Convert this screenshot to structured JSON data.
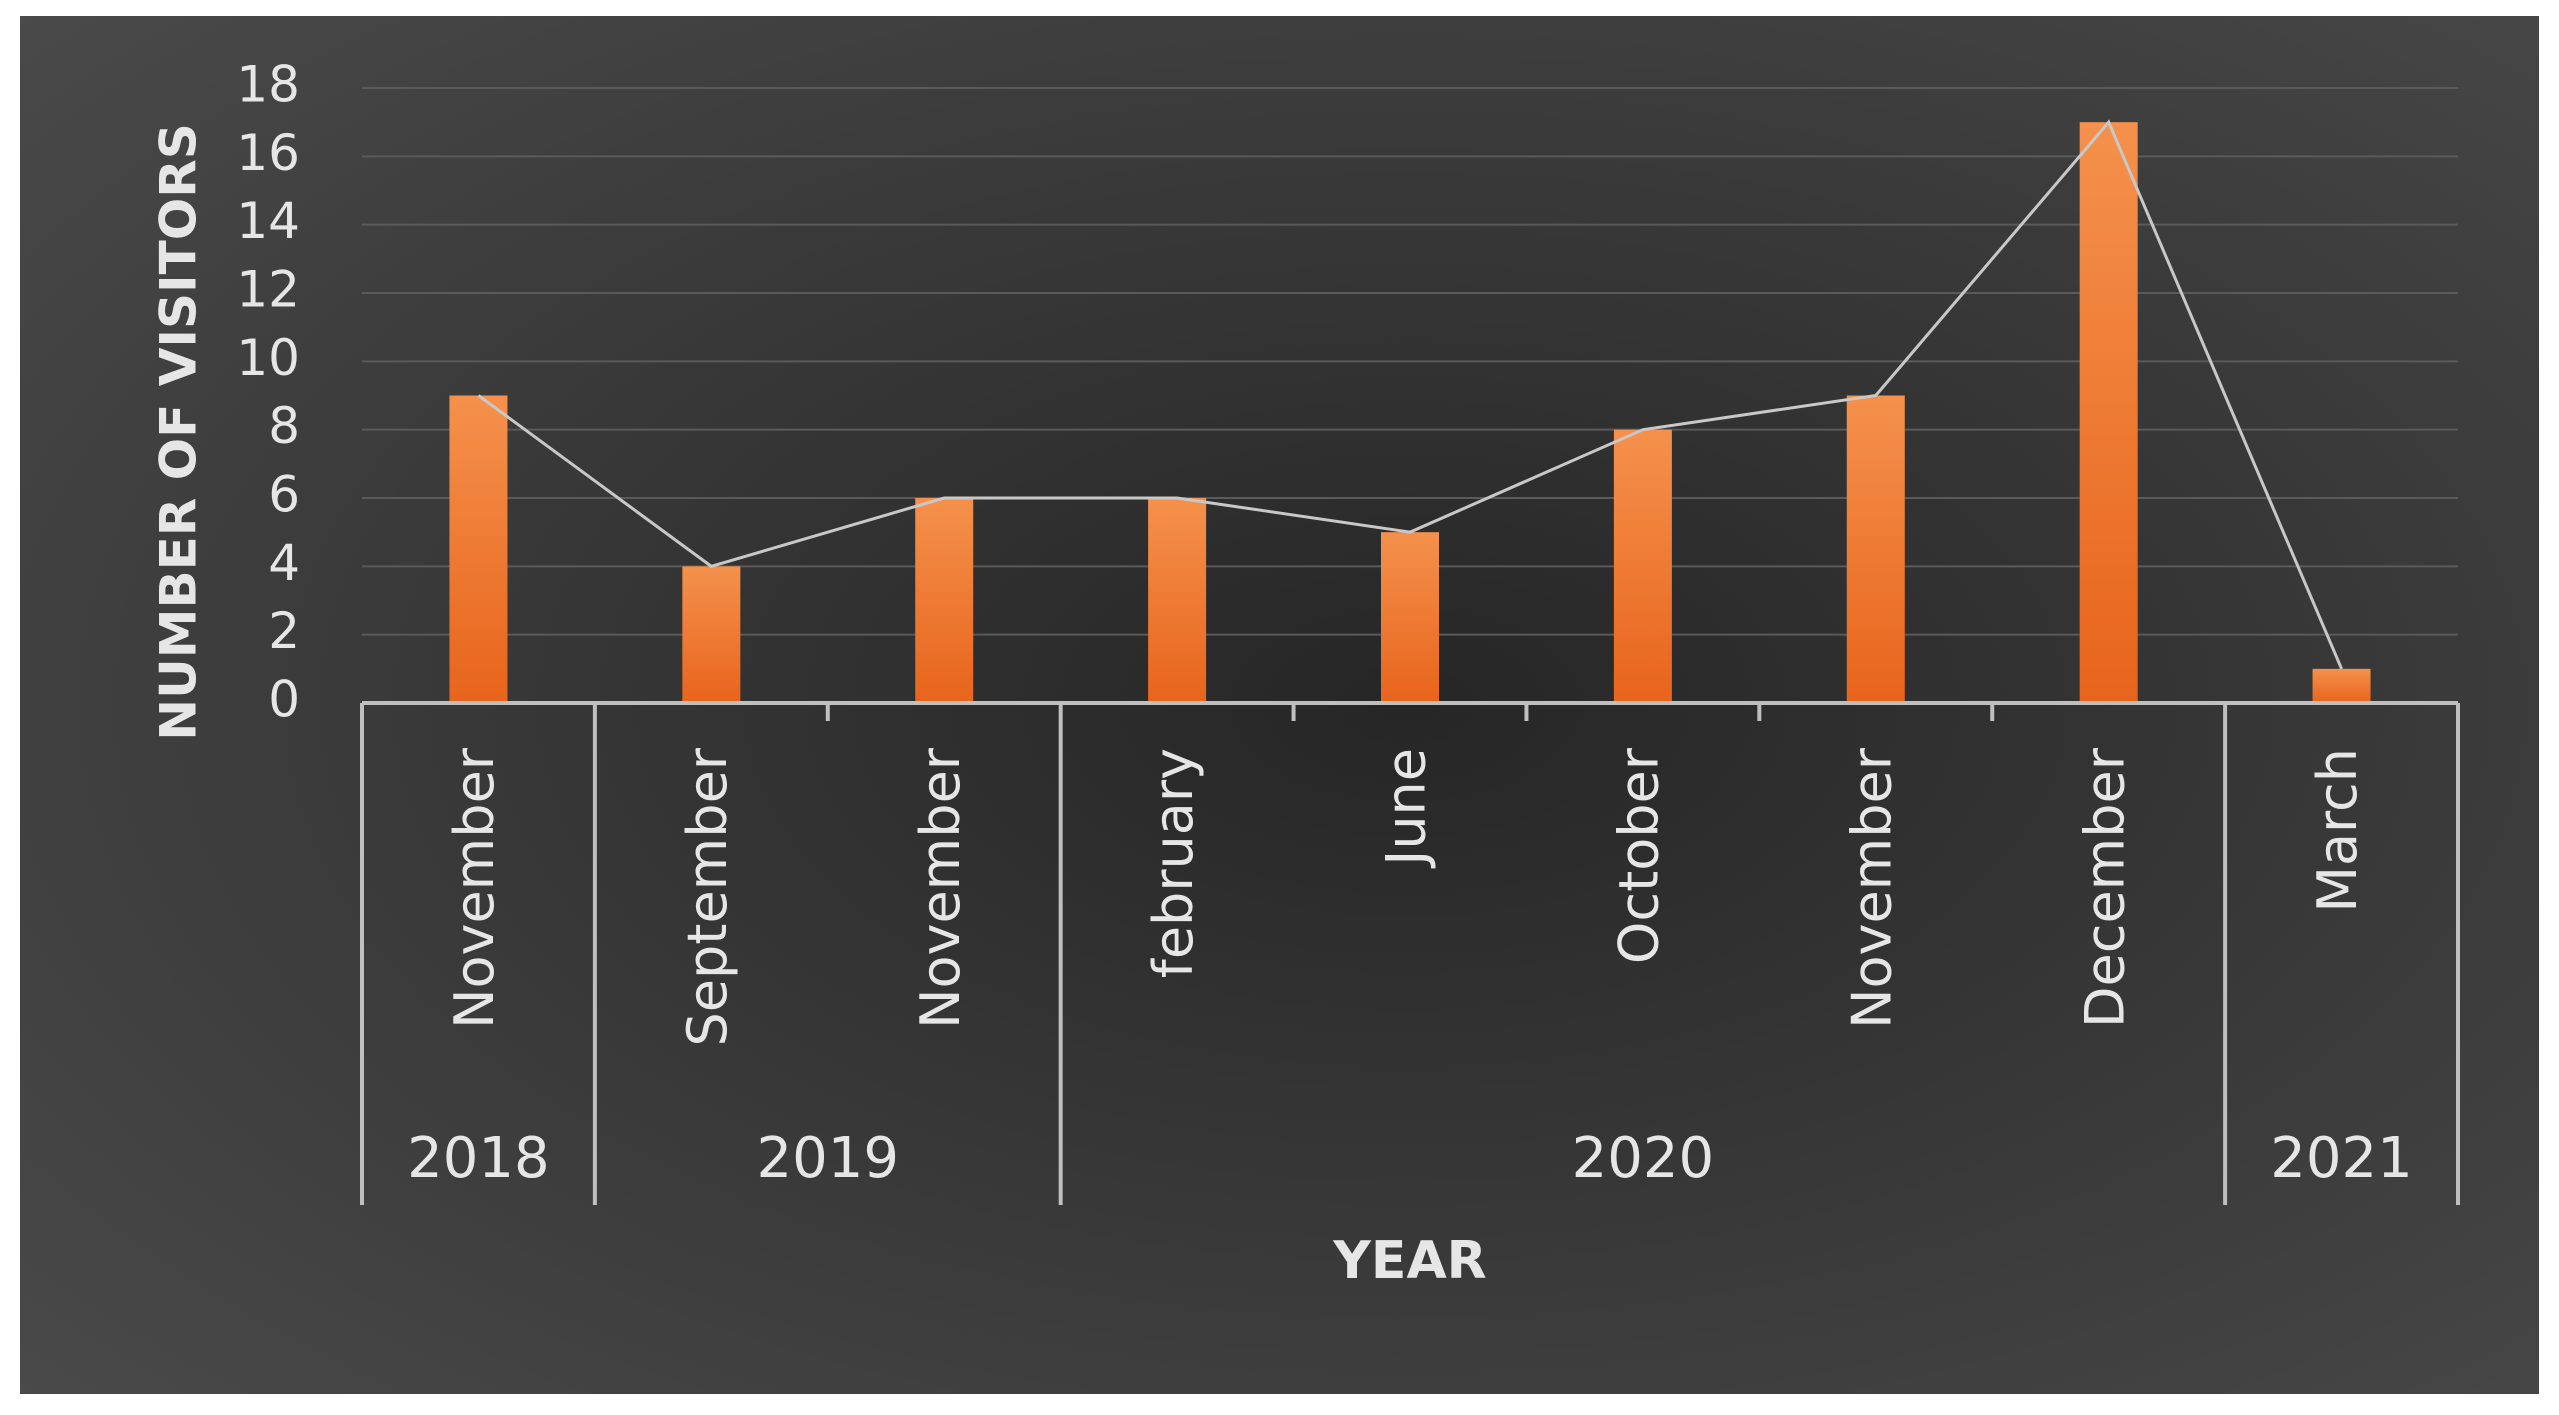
{
  "chart_data": {
    "type": "bar",
    "xlabel": "YEAR",
    "ylabel": "NUMBER OF VISITORS",
    "ylim": [
      0,
      18
    ],
    "y_ticks": [
      "0",
      "2",
      "4",
      "6",
      "8",
      "10",
      "12",
      "14",
      "16",
      "18"
    ],
    "categories": [
      "November",
      "September",
      "November",
      "february",
      "June",
      "October",
      "November",
      "December",
      "March"
    ],
    "values": [
      9,
      4,
      6,
      6,
      5,
      8,
      9,
      17,
      1
    ],
    "groups": [
      {
        "label": "2018",
        "count": 1
      },
      {
        "label": "2019",
        "count": 2
      },
      {
        "label": "2020",
        "count": 5
      },
      {
        "label": "2021",
        "count": 1
      }
    ],
    "overlay": "line connecting bar tops",
    "grid": true,
    "legend": "none",
    "colors": {
      "background_outer": "#4a4a4a",
      "background_inner": "#262626",
      "bar_top": "#f4914c",
      "bar_bottom": "#e8641c",
      "line": "#c8c8c8",
      "gridline": "#5a5a5a",
      "text": "#e6e6e6",
      "axis": "#bfbfbf"
    }
  }
}
